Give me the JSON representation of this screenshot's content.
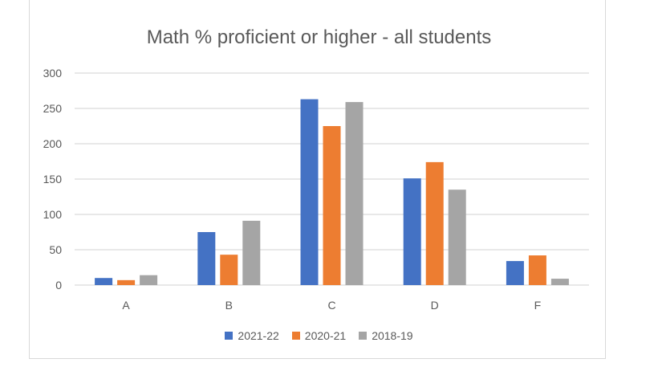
{
  "chart_data": {
    "type": "bar",
    "title": "Math % proficient or higher - all students",
    "categories": [
      "A",
      "B",
      "C",
      "D",
      "F"
    ],
    "series": [
      {
        "name": "2021-22",
        "color": "#4472c4",
        "values": [
          10,
          75,
          263,
          151,
          34
        ]
      },
      {
        "name": "2020-21",
        "color": "#ed7d31",
        "values": [
          7,
          43,
          225,
          174,
          42
        ]
      },
      {
        "name": "2018-19",
        "color": "#a5a5a5",
        "values": [
          14,
          91,
          259,
          135,
          9
        ]
      }
    ],
    "ylim": [
      0,
      300
    ],
    "yticks": [
      "0",
      "50",
      "100",
      "150",
      "200",
      "250",
      "300"
    ],
    "xlabel": "",
    "ylabel": "",
    "grid": true,
    "legend": "bottom"
  }
}
